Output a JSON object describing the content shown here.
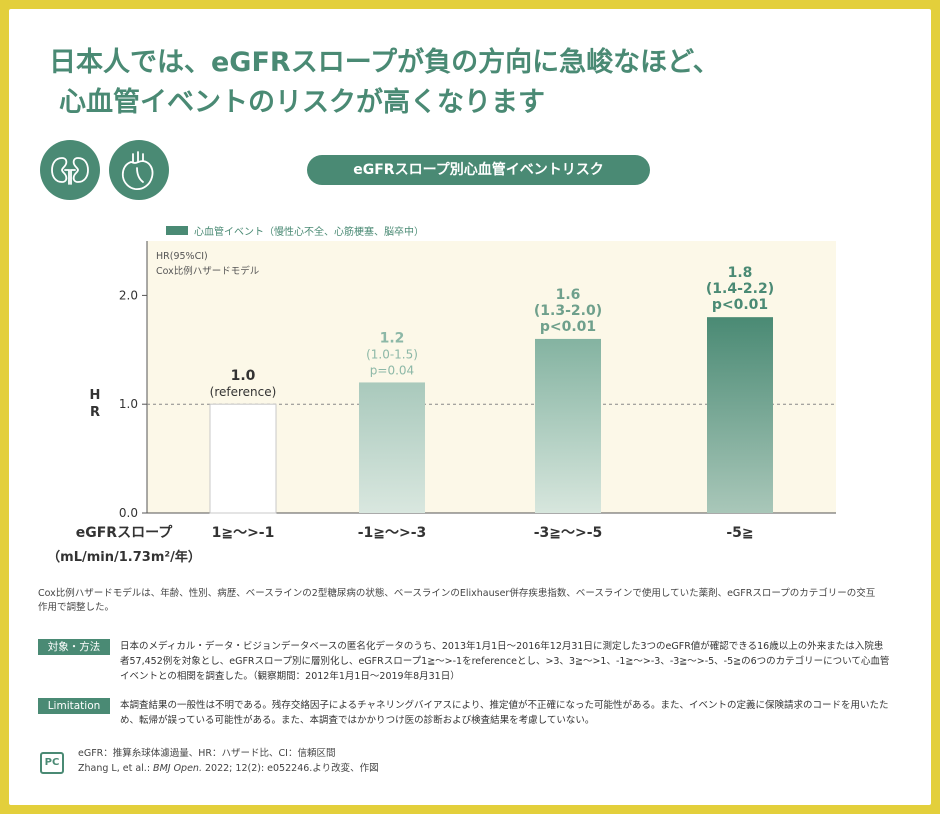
{
  "headline": {
    "line1": "日本人では、eGFRスロープが負の方向に急峻なほど、",
    "line2": "心血管イベントのリスクが高くなります"
  },
  "icons": [
    "kidneys-icon",
    "heart-icon"
  ],
  "chart_title": "eGFRスロープ別心血管イベントリスク",
  "colors": {
    "brand": "#4a8a74",
    "plot_bg": "#fcf8e8",
    "frame": "#e3cf3b"
  },
  "chart_data": {
    "type": "bar",
    "legend": "心血管イベント（慢性心不全、心筋梗塞、脳卒中）",
    "model_label_1": "HR(95%CI)",
    "model_label_2": "Cox比例ハザードモデル",
    "ylabel_1": "H",
    "ylabel_2": "R",
    "xlabel_1": "eGFRスロープ",
    "xlabel_2": "（mL/min/1.73m²/年）",
    "ylim": [
      0,
      2.5
    ],
    "yticks": [
      "0.0",
      "1.0",
      "2.0"
    ],
    "reference_line": 1.0,
    "categories": [
      "1≧～>-1",
      "-1≧～>-3",
      "-3≧～>-5",
      "-5≧"
    ],
    "values": [
      1.0,
      1.2,
      1.6,
      1.8
    ],
    "value_labels": [
      "1.0",
      "1.2",
      "1.6",
      "1.8"
    ],
    "ci_labels": [
      "(reference)",
      "(1.0-1.5)",
      "(1.3-2.0)",
      "(1.4-2.2)"
    ],
    "p_labels": [
      "",
      "p=0.04",
      "p<0.01",
      "p<0.01"
    ],
    "grid": false
  },
  "footnote": "Cox比例ハザードモデルは、年齢、性別、病歴、ベースラインの2型糖尿病の状態、ベースラインのElixhauser併存疾患指数、ベースラインで使用していた薬剤、eGFRスロープのカテゴリーの交互作用で調整した。",
  "method": {
    "tag": "対象・方法",
    "text": "日本のメディカル・データ・ビジョンデータベースの匿名化データのうち、2013年1月1日～2016年12月31日に測定した3つのeGFR値が確認できる16歳以上の外来または入院患者57,452例を対象とし、eGFRスロープ別に層別化し、eGFRスロープ1≧～>-1をreferenceとし、>3、3≧～>1、-1≧～>-3、-3≧～>-5、-5≧の6つのカテゴリーについて心血管イベントとの相関を調査した。（観察期間：2012年1月1日～2019年8月31日）"
  },
  "limitation": {
    "tag": "Limitation",
    "text": "本調査結果の一般性は不明である。残存交絡因子によるチャネリングバイアスにより、推定値が不正確になった可能性がある。また、イベントの定義に保険請求のコードを用いたため、転帰が誤っている可能性がある。また、本調査ではかかりつけ医の診断および検査結果を考慮していない。"
  },
  "references": {
    "logo": "PC",
    "abbrev": "eGFR：推算糸球体濾過量、HR：ハザード比、CI：信頼区間",
    "cite_author": "Zhang L, et al.: ",
    "cite_journal": "BMJ Open.",
    "cite_rest": " 2022; 12(2): e052246.より改変、作図"
  }
}
